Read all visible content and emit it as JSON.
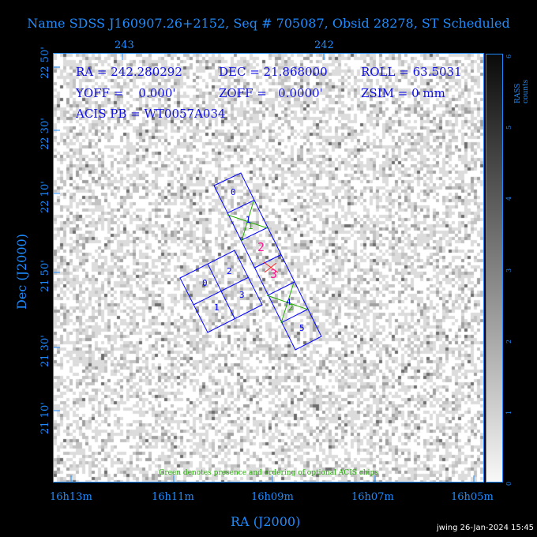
{
  "title": "Name SDSS J160907.26+2152, Seq # 705087, Obsid 28278, ST Scheduled",
  "info": {
    "ra": "RA = 242.280292",
    "dec": "DEC = 21.868000",
    "roll": "ROLL = 63.5031",
    "yoff": "YOFF =    0.000'",
    "zoff": "ZOFF =   0.0000'",
    "zsim": "ZSIM = 0 mm",
    "acis_pb": "ACIS PB = WT0057A034"
  },
  "top_axis": [
    "243",
    "242"
  ],
  "y_ticks": [
    "22 50'",
    "22 30'",
    "22 10'",
    "21 50'",
    "21 30'",
    "21 10'"
  ],
  "x_ticks": [
    "16h13m",
    "16h11m",
    "16h09m",
    "16h07m",
    "16h05m"
  ],
  "x_label": "RA (J2000)",
  "y_label": "Dec (J2000)",
  "colorbar": {
    "label": "RASS counts",
    "ticks": [
      "0",
      "1",
      "2",
      "3",
      "4",
      "5",
      "6"
    ],
    "range": [
      0,
      6
    ]
  },
  "chips": {
    "s": [
      "0",
      "1",
      "2",
      "3",
      "4",
      "5"
    ],
    "i": [
      "0",
      "1",
      "2",
      "3"
    ],
    "optional_order": [
      "1",
      "2"
    ]
  },
  "note": "Green denotes presence and ordering of optional ACIS chips",
  "footer": "jwing 26-Jan-2024 15:45",
  "colors": {
    "axis": "#1e8cff",
    "chip": "#0000ff",
    "optional": "#22aa00",
    "selected": "#ff1493"
  }
}
